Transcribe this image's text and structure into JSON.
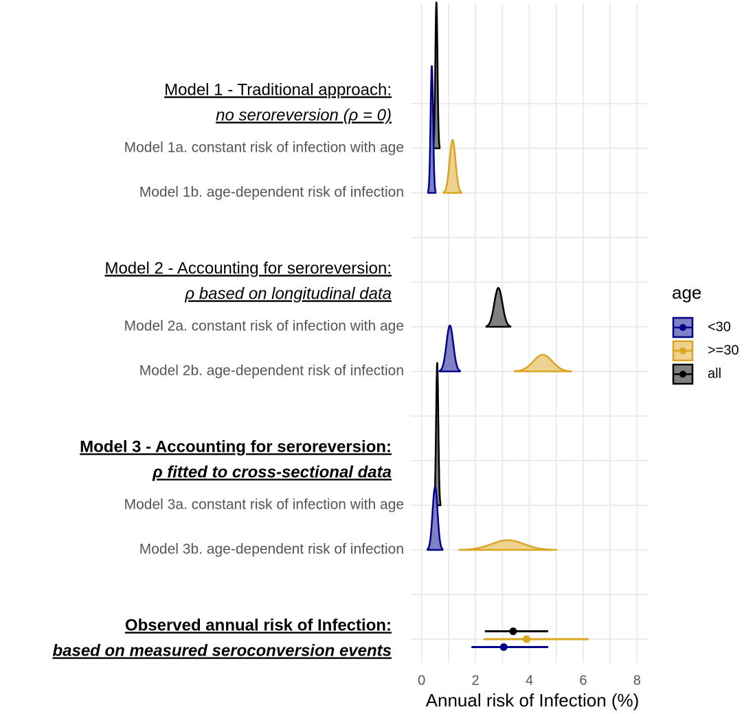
{
  "chart_data": {
    "type": "ridgeline",
    "x_label": "Annual risk of Infection (%)",
    "xlim": [
      -0.4,
      8.4
    ],
    "xticks": [
      0,
      2,
      4,
      6,
      8
    ],
    "xticks_minor": [
      1,
      3,
      5,
      7
    ],
    "grid": true,
    "legend_title": "age",
    "legend_position": "right",
    "categories": [
      {
        "line1": "Model 1 - Traditional approach:",
        "line2": "no seroreversion (ρ = 0)",
        "bold": false
      },
      "Model 1a. constant risk of infection with age",
      "Model 1b. age-dependent risk of infection",
      null,
      {
        "line1": "Model 2 - Accounting for seroreversion:",
        "line2": "ρ based on longitudinal data",
        "bold": false
      },
      "Model 2a. constant risk of infection with age",
      "Model 2b. age-dependent risk of infection",
      null,
      {
        "line1": "Model 3 - Accounting for seroreversion:",
        "line2": "ρ fitted to cross-sectional data",
        "bold": true
      },
      "Model 3a. constant risk of infection with age",
      "Model 3b. age-dependent risk of infection",
      null,
      {
        "line1": "Observed annual risk of Infection:",
        "line2": "based on measured seroconversion events",
        "bold": true
      }
    ],
    "series": [
      {
        "name": "<30",
        "color": "#00008b",
        "fill": "#8080c5",
        "values": [
          null,
          null,
          0.38,
          null,
          null,
          null,
          1.05,
          null,
          null,
          null,
          0.5,
          null,
          3.05
        ],
        "sd": [
          null,
          null,
          0.046,
          null,
          null,
          null,
          0.127,
          null,
          null,
          null,
          0.093,
          null,
          null
        ],
        "low": [
          null,
          null,
          null,
          null,
          null,
          null,
          null,
          null,
          null,
          null,
          null,
          null,
          1.85
        ],
        "high": [
          null,
          null,
          null,
          null,
          null,
          null,
          null,
          null,
          null,
          null,
          null,
          null,
          4.7
        ]
      },
      {
        "name": ">=30",
        "color": "#daa520",
        "fill": "#edd290",
        "values": [
          null,
          null,
          1.15,
          null,
          null,
          null,
          4.5,
          null,
          null,
          null,
          3.2,
          null,
          3.9
        ],
        "sd": [
          null,
          null,
          0.11,
          null,
          null,
          null,
          0.35,
          null,
          null,
          null,
          0.6,
          null,
          null
        ],
        "low": [
          null,
          null,
          null,
          null,
          null,
          null,
          null,
          null,
          null,
          null,
          null,
          null,
          2.3
        ],
        "high": [
          null,
          null,
          null,
          null,
          null,
          null,
          null,
          null,
          null,
          null,
          null,
          null,
          6.2
        ]
      },
      {
        "name": "all",
        "color": "#000000",
        "fill": "#808080",
        "values": [
          null,
          0.55,
          null,
          null,
          null,
          2.85,
          null,
          null,
          null,
          0.58,
          null,
          null,
          3.4
        ],
        "sd": [
          null,
          0.04,
          null,
          null,
          null,
          0.15,
          null,
          null,
          null,
          0.041,
          null,
          null,
          null
        ],
        "low": [
          null,
          null,
          null,
          null,
          null,
          null,
          null,
          null,
          null,
          null,
          null,
          null,
          2.35
        ],
        "high": [
          null,
          null,
          null,
          null,
          null,
          null,
          null,
          null,
          null,
          null,
          null,
          null,
          4.7
        ]
      }
    ]
  }
}
